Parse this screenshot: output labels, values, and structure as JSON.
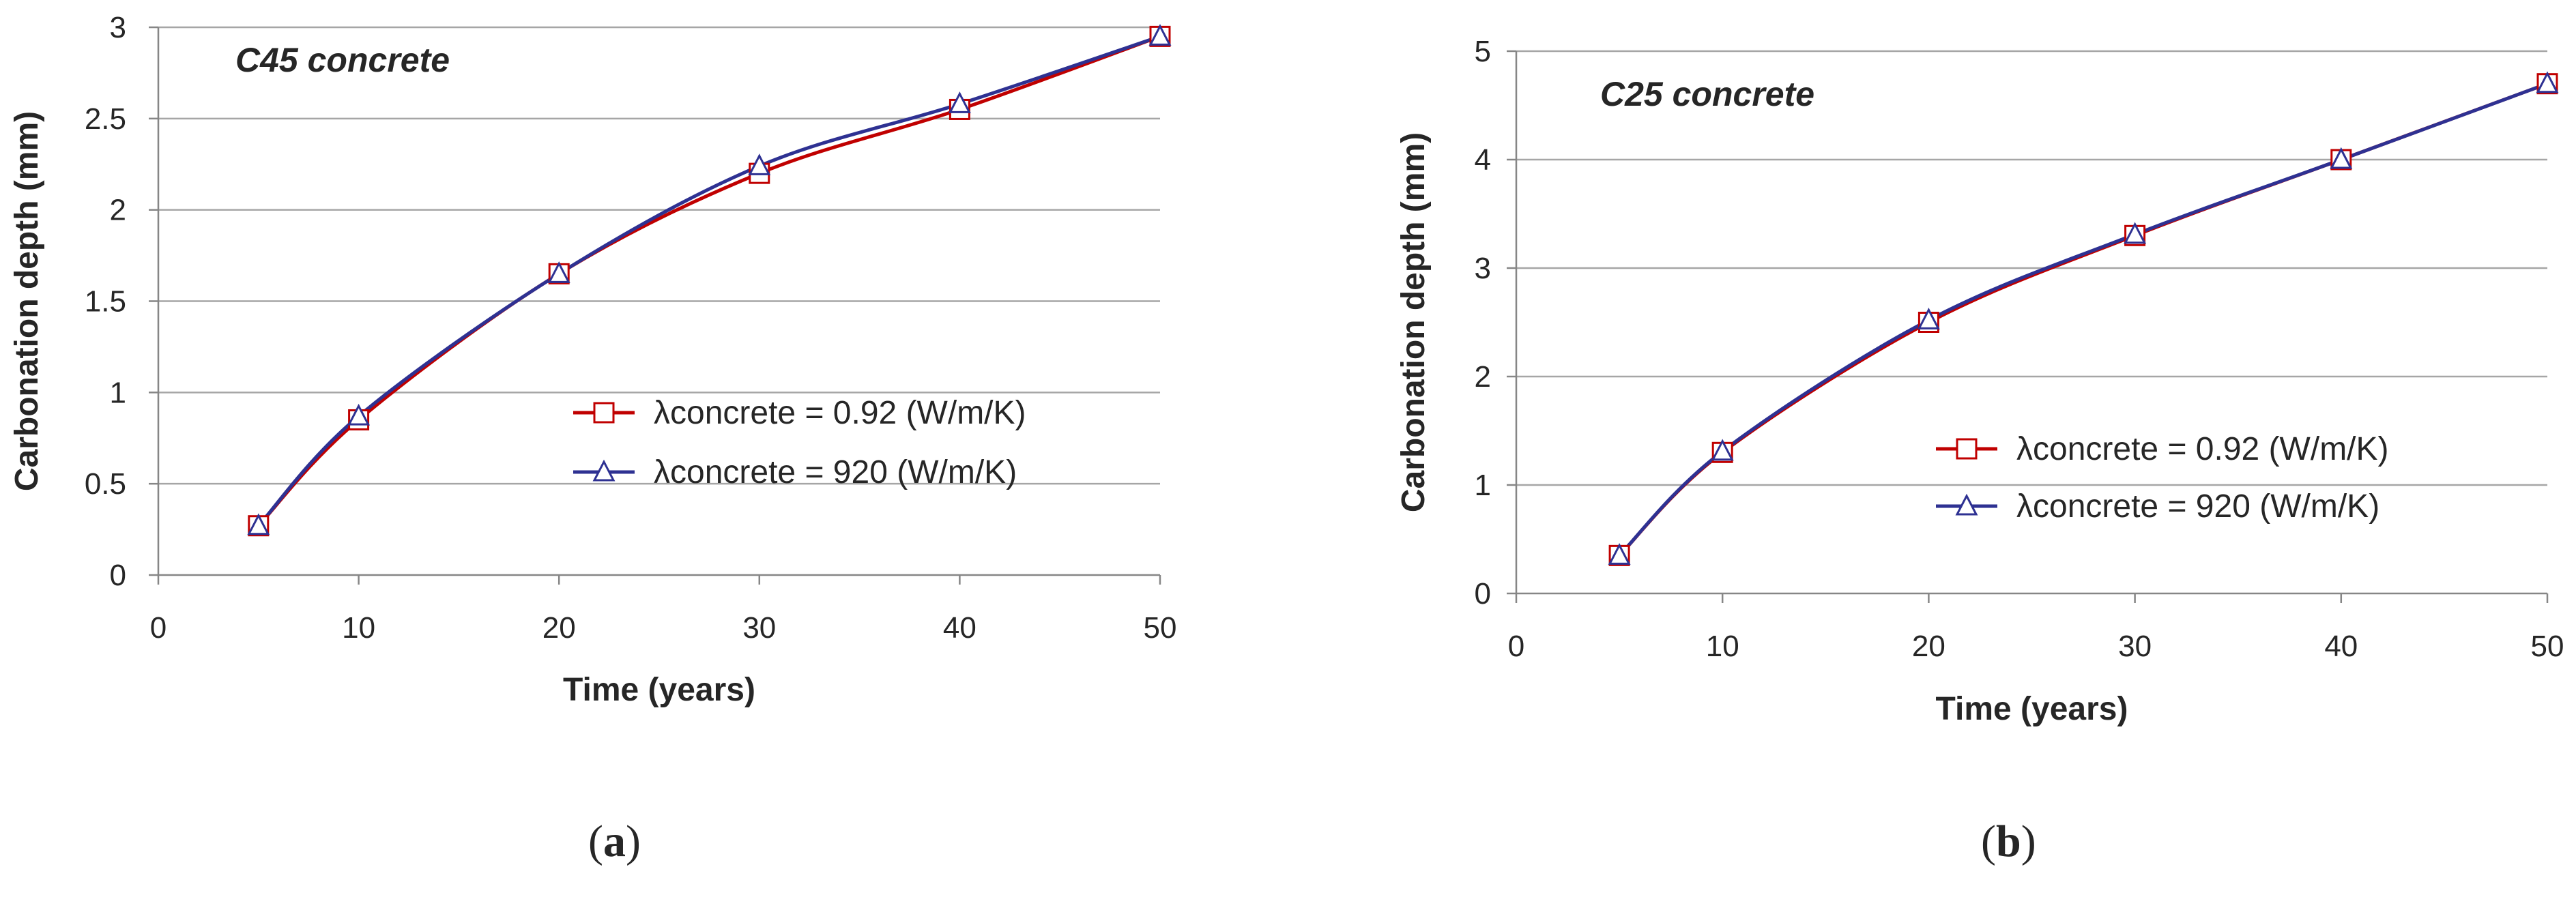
{
  "chart_data": [
    {
      "type": "line",
      "panel_label_open": "(",
      "panel_label_letter": "a",
      "panel_label_close": ")",
      "annotation": "C45 concrete",
      "xlabel": "Time (years)",
      "ylabel": "Carbonation depth (mm)",
      "xlim": [
        0,
        50
      ],
      "ylim": [
        0,
        3
      ],
      "x_ticks": [
        0,
        10,
        20,
        30,
        40,
        50
      ],
      "y_ticks": [
        0,
        0.5,
        1,
        1.5,
        2,
        2.5,
        3
      ],
      "x_tick_labels": [
        "0",
        "10",
        "20",
        "30",
        "40",
        "50"
      ],
      "y_tick_labels": [
        "0",
        "0.5",
        "1",
        "1.5",
        "2",
        "2.5",
        "3"
      ],
      "grid": "horizontal",
      "legend_position": "center-right",
      "x": [
        5,
        10,
        20,
        30,
        40,
        50
      ],
      "series": [
        {
          "name": "λconcrete = 0.92 (W/m/K)",
          "color": "#c00000",
          "marker": "square",
          "values": [
            0.27,
            0.85,
            1.65,
            2.2,
            2.55,
            2.95
          ]
        },
        {
          "name": "λconcrete = 920 (W/m/K)",
          "color": "#2e3192",
          "marker": "triangle",
          "values": [
            0.27,
            0.87,
            1.65,
            2.24,
            2.58,
            2.95
          ]
        }
      ]
    },
    {
      "type": "line",
      "panel_label_open": "(",
      "panel_label_letter": "b",
      "panel_label_close": ")",
      "annotation": "C25 concrete",
      "xlabel": "Time (years)",
      "ylabel": "Carbonation depth (mm)",
      "xlim": [
        0,
        50
      ],
      "ylim": [
        0,
        5
      ],
      "x_ticks": [
        0,
        10,
        20,
        30,
        40,
        50
      ],
      "y_ticks": [
        0,
        1,
        2,
        3,
        4,
        5
      ],
      "x_tick_labels": [
        "0",
        "10",
        "20",
        "30",
        "40",
        "50"
      ],
      "y_tick_labels": [
        "0",
        "1",
        "2",
        "3",
        "4",
        "5"
      ],
      "grid": "horizontal",
      "legend_position": "center-right",
      "x": [
        5,
        10,
        20,
        30,
        40,
        50
      ],
      "series": [
        {
          "name": "λconcrete = 0.92 (W/m/K)",
          "color": "#c00000",
          "marker": "square",
          "values": [
            0.35,
            1.3,
            2.5,
            3.3,
            4.0,
            4.7
          ]
        },
        {
          "name": "λconcrete = 920 (W/m/K)",
          "color": "#2e3192",
          "marker": "triangle",
          "values": [
            0.35,
            1.31,
            2.52,
            3.31,
            4.0,
            4.7
          ]
        }
      ]
    }
  ]
}
